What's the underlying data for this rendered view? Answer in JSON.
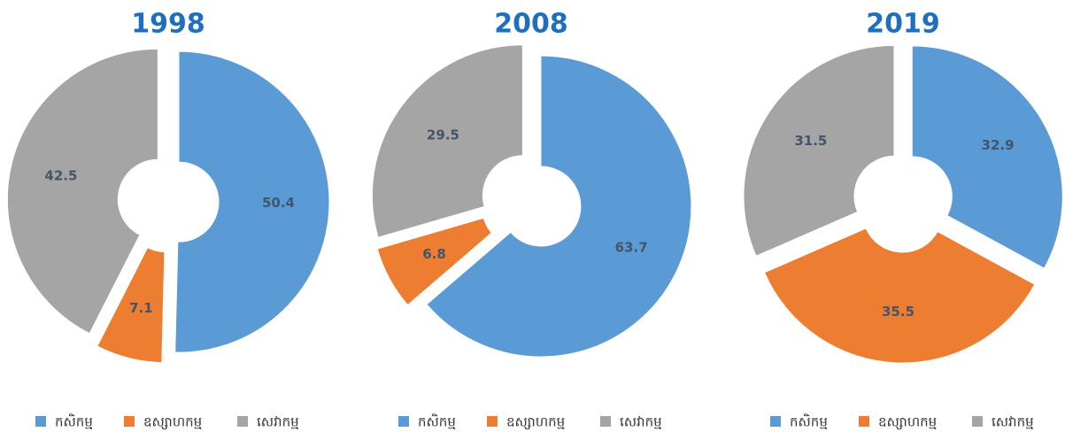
{
  "chart_data": [
    {
      "type": "donut",
      "title": "1998",
      "categories": [
        "កសិកម្ម",
        "ឧស្សាហកម្ម",
        "សេវាកម្ម"
      ],
      "values": [
        50.4,
        7.1,
        42.5
      ],
      "colors": [
        "#5b9bd5",
        "#ed7d31",
        "#a5a5a5"
      ],
      "legend": "bottom"
    },
    {
      "type": "donut",
      "title": "2008",
      "categories": [
        "កសិកម្ម",
        "ឧស្សាហកម្ម",
        "សេវាកម្ម"
      ],
      "values": [
        63.7,
        6.8,
        29.5
      ],
      "colors": [
        "#5b9bd5",
        "#ed7d31",
        "#a5a5a5"
      ],
      "legend": "bottom"
    },
    {
      "type": "donut",
      "title": "2019",
      "categories": [
        "កសិកម្ម",
        "ឧស្សាហកម្ម",
        "សេវាកម្ម"
      ],
      "values": [
        32.9,
        35.5,
        31.5
      ],
      "colors": [
        "#5b9bd5",
        "#ed7d31",
        "#a5a5a5"
      ],
      "legend": "bottom"
    }
  ]
}
